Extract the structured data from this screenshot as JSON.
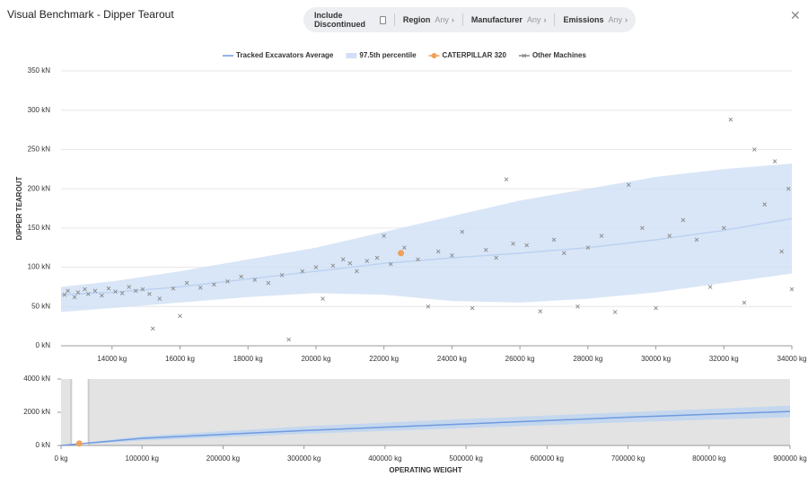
{
  "header": {
    "title": "Visual Benchmark - Dipper Tearout",
    "filters": [
      {
        "label": "Include Discontinued"
      },
      {
        "label": "Region",
        "value": "Any"
      },
      {
        "label": "Manufacturer",
        "value": "Any"
      },
      {
        "label": "Emissions",
        "value": "Any"
      }
    ]
  },
  "chart_data": [
    {
      "type": "scatter",
      "ylabel": "DIPPER TEAROUT",
      "xlim": [
        12500,
        34000
      ],
      "xticks": [
        {
          "value": 14000,
          "label": "14000 kg"
        },
        {
          "value": 16000,
          "label": "16000 kg"
        },
        {
          "value": 18000,
          "label": "18000 kg"
        },
        {
          "value": 20000,
          "label": "20000 kg"
        },
        {
          "value": 22000,
          "label": "22000 kg"
        },
        {
          "value": 24000,
          "label": "24000 kg"
        },
        {
          "value": 26000,
          "label": "26000 kg"
        },
        {
          "value": 28000,
          "label": "28000 kg"
        },
        {
          "value": 30000,
          "label": "30000 kg"
        },
        {
          "value": 32000,
          "label": "32000 kg"
        },
        {
          "value": 34000,
          "label": "34000 kg"
        }
      ],
      "ylim": [
        0,
        350
      ],
      "yticks": [
        {
          "value": 0,
          "label": "0 kN"
        },
        {
          "value": 50,
          "label": "50 kN"
        },
        {
          "value": 100,
          "label": "100 kN"
        },
        {
          "value": 150,
          "label": "150 kN"
        },
        {
          "value": 200,
          "label": "200 kN"
        },
        {
          "value": 250,
          "label": "250 kN"
        },
        {
          "value": 300,
          "label": "300 kN"
        },
        {
          "value": 350,
          "label": "350 kN"
        }
      ],
      "grid": true,
      "series": [
        {
          "name": "Tracked Excavators Average",
          "type": "line",
          "color": "#6f9be0",
          "x": [
            12500,
            14000,
            16000,
            18000,
            20000,
            22000,
            24000,
            26000,
            28000,
            30000,
            32000,
            34000
          ],
          "values": [
            65,
            68,
            75,
            85,
            95,
            105,
            112,
            118,
            125,
            135,
            147,
            162
          ]
        },
        {
          "name": "97.5th percentile",
          "type": "band",
          "color": "#cfe0f5",
          "x": [
            12500,
            14000,
            16000,
            18000,
            20000,
            22000,
            24000,
            26000,
            28000,
            30000,
            32000,
            34000
          ],
          "low": [
            43,
            48,
            55,
            62,
            67,
            65,
            57,
            55,
            60,
            68,
            80,
            92
          ],
          "high": [
            75,
            82,
            95,
            110,
            125,
            145,
            165,
            185,
            200,
            215,
            225,
            232
          ]
        },
        {
          "name": "CATERPILLAR 320",
          "type": "point",
          "color": "#f0a05a",
          "x": [
            22500
          ],
          "values": [
            118
          ]
        },
        {
          "name": "Other Machines",
          "type": "cross",
          "color": "#888888",
          "x": [
            12600,
            12700,
            12900,
            13000,
            13200,
            13300,
            13500,
            13700,
            13900,
            14100,
            14300,
            14500,
            14700,
            14900,
            15100,
            15200,
            15400,
            15800,
            16000,
            16200,
            16600,
            17000,
            17400,
            17800,
            18200,
            18600,
            19000,
            19200,
            19600,
            20000,
            20200,
            20500,
            20800,
            21000,
            21200,
            21500,
            21800,
            22000,
            22200,
            22600,
            23000,
            23300,
            23600,
            24000,
            24300,
            24600,
            25000,
            25300,
            25600,
            25800,
            26200,
            26600,
            27000,
            27300,
            27700,
            28000,
            28400,
            28800,
            29200,
            29600,
            30000,
            30400,
            30800,
            31200,
            31600,
            32000,
            32200,
            32600,
            32900,
            33200,
            33500,
            33700,
            33900,
            34000
          ],
          "values": [
            65,
            70,
            62,
            68,
            72,
            66,
            70,
            64,
            73,
            69,
            67,
            75,
            70,
            72,
            66,
            22,
            60,
            73,
            38,
            80,
            74,
            78,
            82,
            88,
            84,
            80,
            90,
            8,
            95,
            100,
            60,
            102,
            110,
            105,
            95,
            108,
            112,
            140,
            104,
            125,
            110,
            50,
            120,
            115,
            145,
            48,
            122,
            112,
            212,
            130,
            128,
            44,
            135,
            118,
            50,
            125,
            140,
            43,
            205,
            150,
            48,
            140,
            160,
            135,
            75,
            150,
            288,
            55,
            250,
            180,
            235,
            120,
            200,
            72
          ]
        }
      ]
    },
    {
      "type": "scatter",
      "xlabel": "OPERATING WEIGHT",
      "xlim": [
        0,
        900000
      ],
      "xticks": [
        {
          "value": 0,
          "label": "0 kg"
        },
        {
          "value": 100000,
          "label": "100000 kg"
        },
        {
          "value": 200000,
          "label": "200000 kg"
        },
        {
          "value": 300000,
          "label": "300000 kg"
        },
        {
          "value": 400000,
          "label": "400000 kg"
        },
        {
          "value": 500000,
          "label": "500000 kg"
        },
        {
          "value": 600000,
          "label": "600000 kg"
        },
        {
          "value": 700000,
          "label": "700000 kg"
        },
        {
          "value": 800000,
          "label": "800000 kg"
        },
        {
          "value": 900000,
          "label": "900000 kg"
        }
      ],
      "ylim": [
        0,
        4000
      ],
      "yticks": [
        {
          "value": 0,
          "label": "0 kN"
        },
        {
          "value": 2000,
          "label": "2000 kN"
        },
        {
          "value": 4000,
          "label": "4000 kN"
        }
      ],
      "grid": false,
      "series": [
        {
          "type": "band",
          "color": "#bcd3f0",
          "x": [
            0,
            100000,
            300000,
            500000,
            700000,
            900000
          ],
          "low": [
            0,
            300,
            700,
            1050,
            1400,
            1700
          ],
          "high": [
            0,
            560,
            1150,
            1600,
            2000,
            2400
          ]
        },
        {
          "type": "line",
          "color": "#6f9be0",
          "x": [
            0,
            100000,
            300000,
            500000,
            700000,
            900000
          ],
          "values": [
            0,
            430,
            900,
            1300,
            1700,
            2050
          ]
        },
        {
          "type": "point",
          "color": "#f0a05a",
          "x": [
            22500
          ],
          "values": [
            118
          ]
        }
      ]
    }
  ]
}
